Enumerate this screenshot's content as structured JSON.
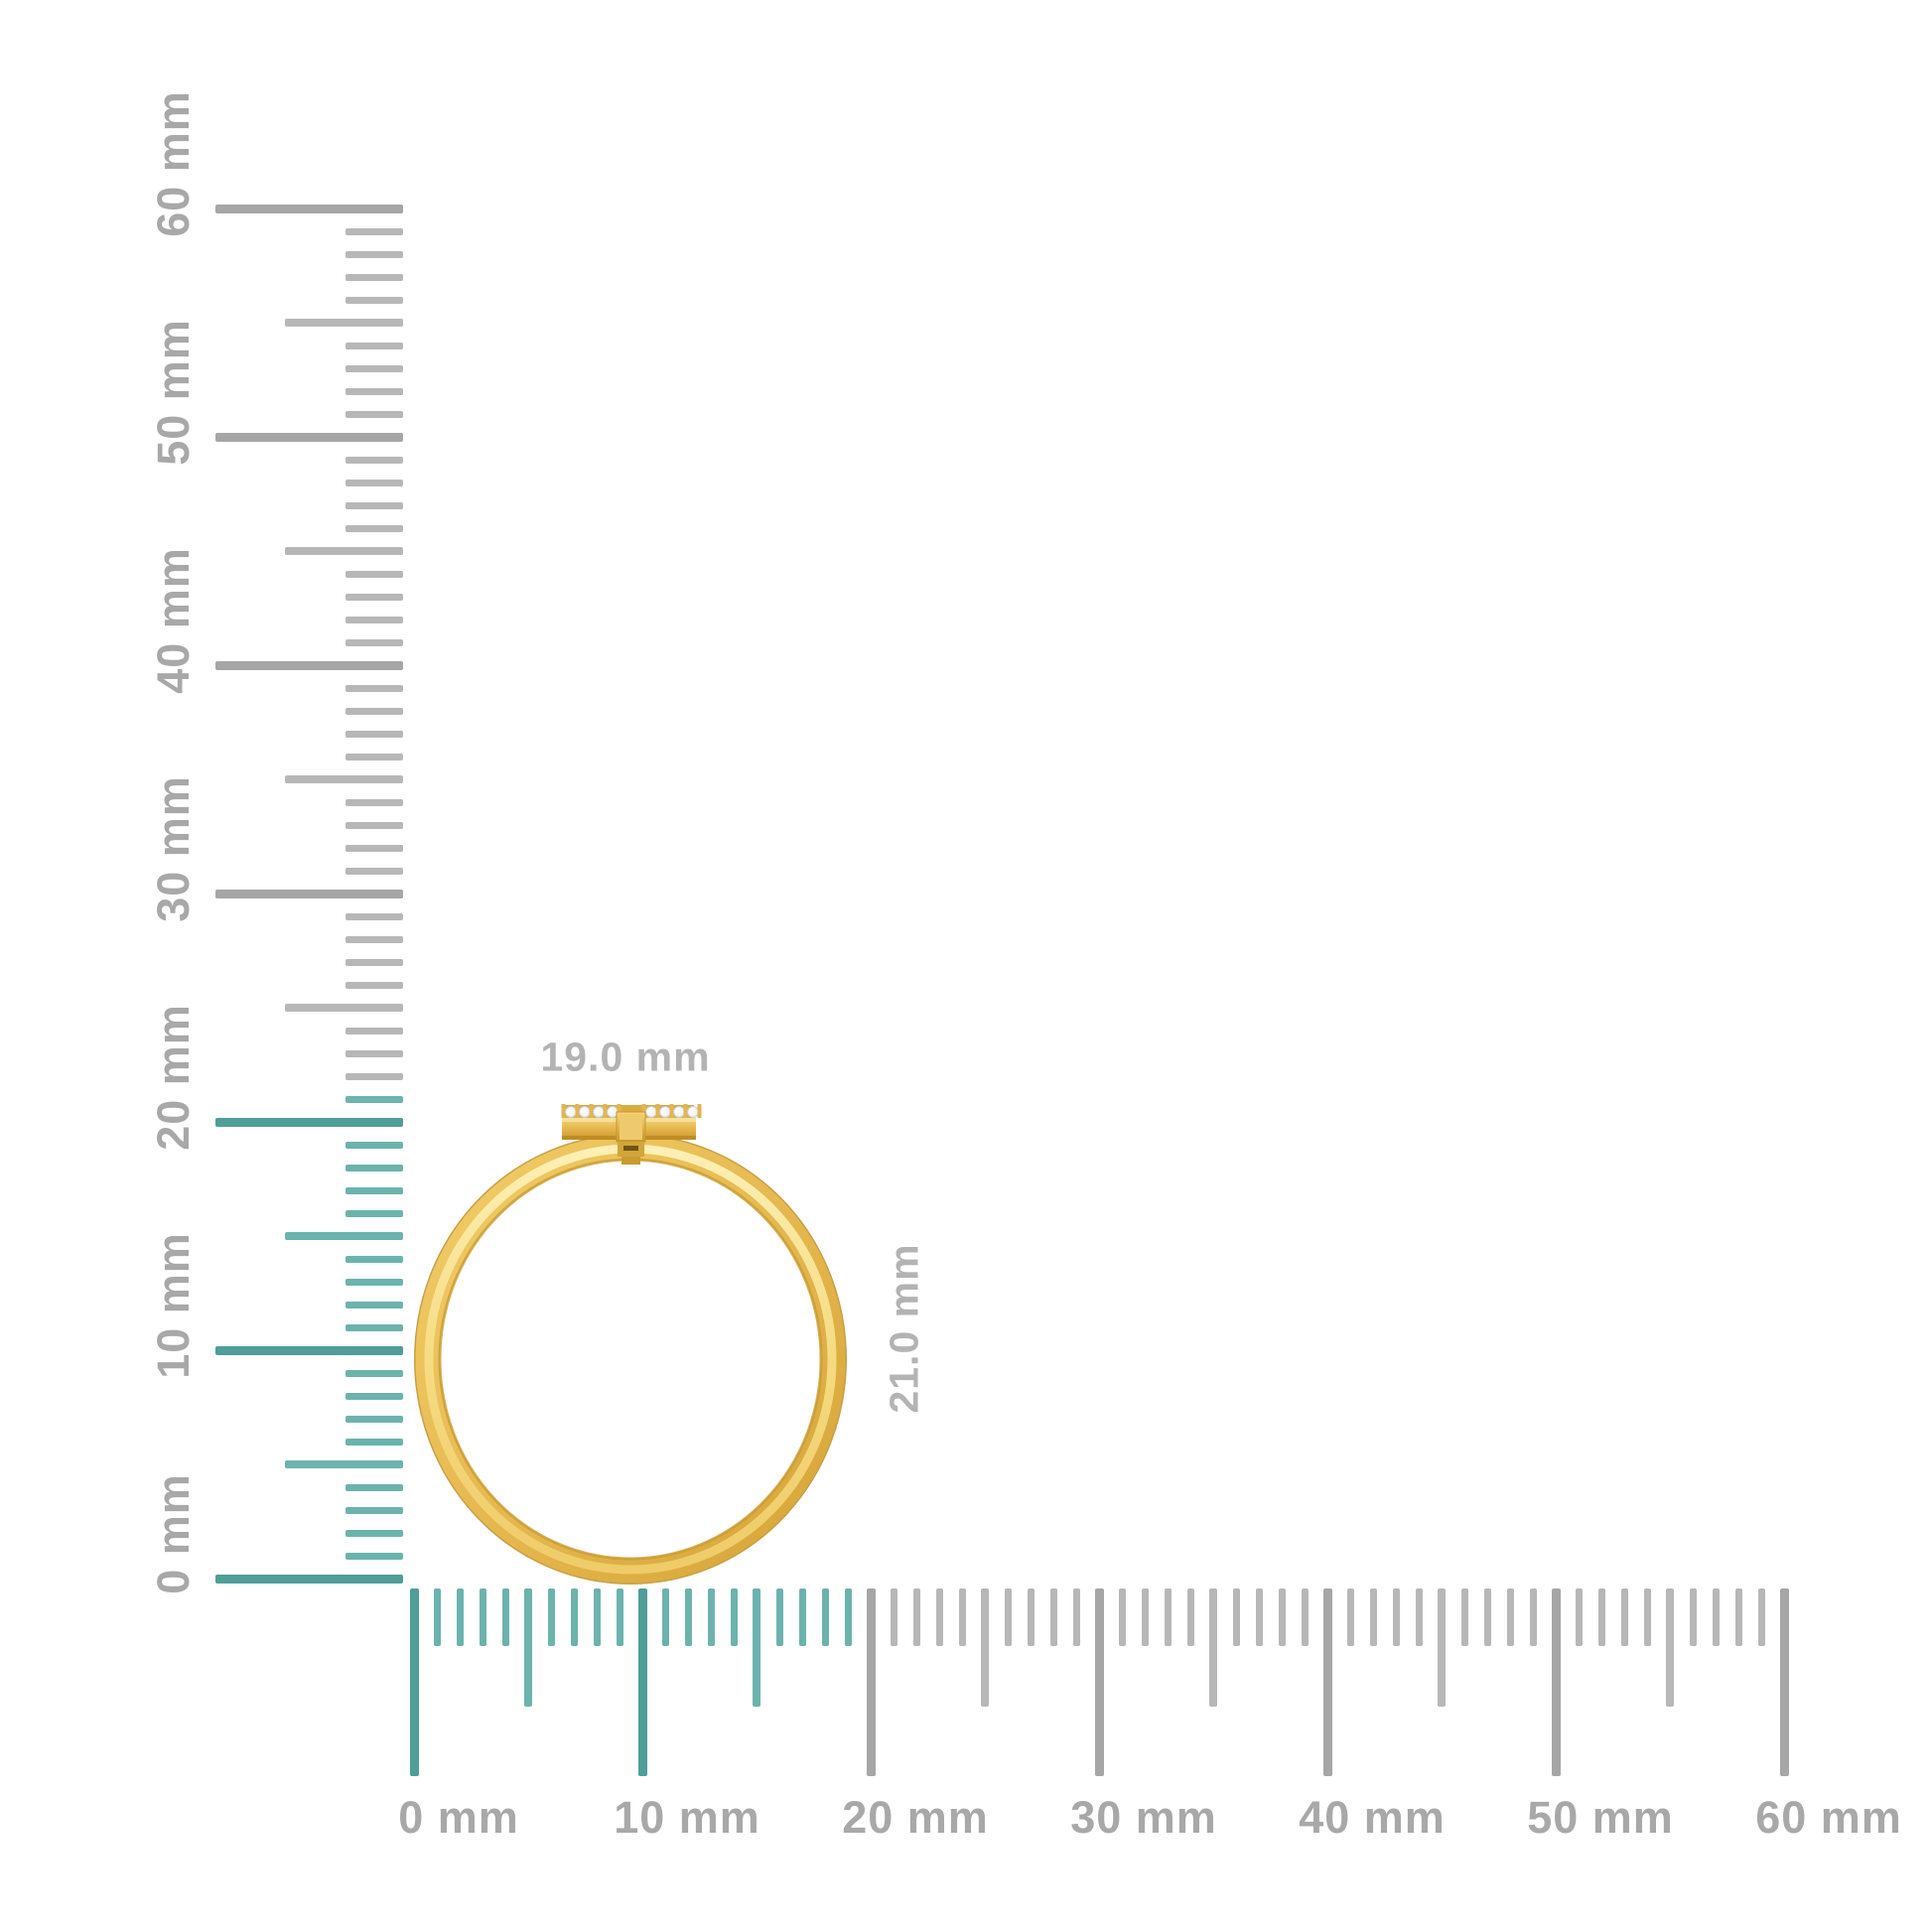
{
  "page": {
    "background": "#ffffff",
    "description": "Product dimension diagram: side view of a yellow-gold ring with a diamond-set bar top, measured against vertical and horizontal millimeter rulers"
  },
  "product": {
    "item": "gold ring with diamond accent bar",
    "width_label": "19.0 mm",
    "height_label": "21.0 mm",
    "accent_stone_count": 8
  },
  "rulers": {
    "unit": "mm",
    "tick_interval_mm": 1,
    "half_tick_every_mm": 5,
    "major_tick_every_mm": 10,
    "vertical": {
      "min_mm": 0,
      "max_mm": 60,
      "highlight_to_mm": 21,
      "labels": [
        {
          "value": 0,
          "text": "0 mm"
        },
        {
          "value": 10,
          "text": "10 mm"
        },
        {
          "value": 20,
          "text": "20 mm"
        },
        {
          "value": 30,
          "text": "30 mm"
        },
        {
          "value": 40,
          "text": "40 mm"
        },
        {
          "value": 50,
          "text": "50 mm"
        },
        {
          "value": 60,
          "text": "60 mm"
        }
      ]
    },
    "horizontal": {
      "min_mm": 0,
      "max_mm": 60,
      "highlight_to_mm": 19,
      "labels": [
        {
          "value": 0,
          "text": "0 mm"
        },
        {
          "value": 10,
          "text": "10 mm"
        },
        {
          "value": 20,
          "text": "20 mm"
        },
        {
          "value": 30,
          "text": "30 mm"
        },
        {
          "value": 40,
          "text": "40 mm"
        },
        {
          "value": 50,
          "text": "50 mm"
        },
        {
          "value": 60,
          "text": "60 mm"
        }
      ]
    }
  },
  "colors": {
    "tick_highlight": "#6cb3ad",
    "tick_highlight_major": "#4f9e98",
    "tick_gray": "#b7b7b7",
    "tick_gray_major": "#a6a6a6",
    "ruler_label_gray": "#a8a8a8",
    "dimension_label_gray": "#b3b3b3",
    "gold_light": "#f7e098",
    "gold_mid": "#e7bc52",
    "gold_dark": "#c08c24",
    "gold_rim": "#bd8f26",
    "diamond_white": "#f5f7f8",
    "diamond_edge": "#c6ccd0"
  }
}
